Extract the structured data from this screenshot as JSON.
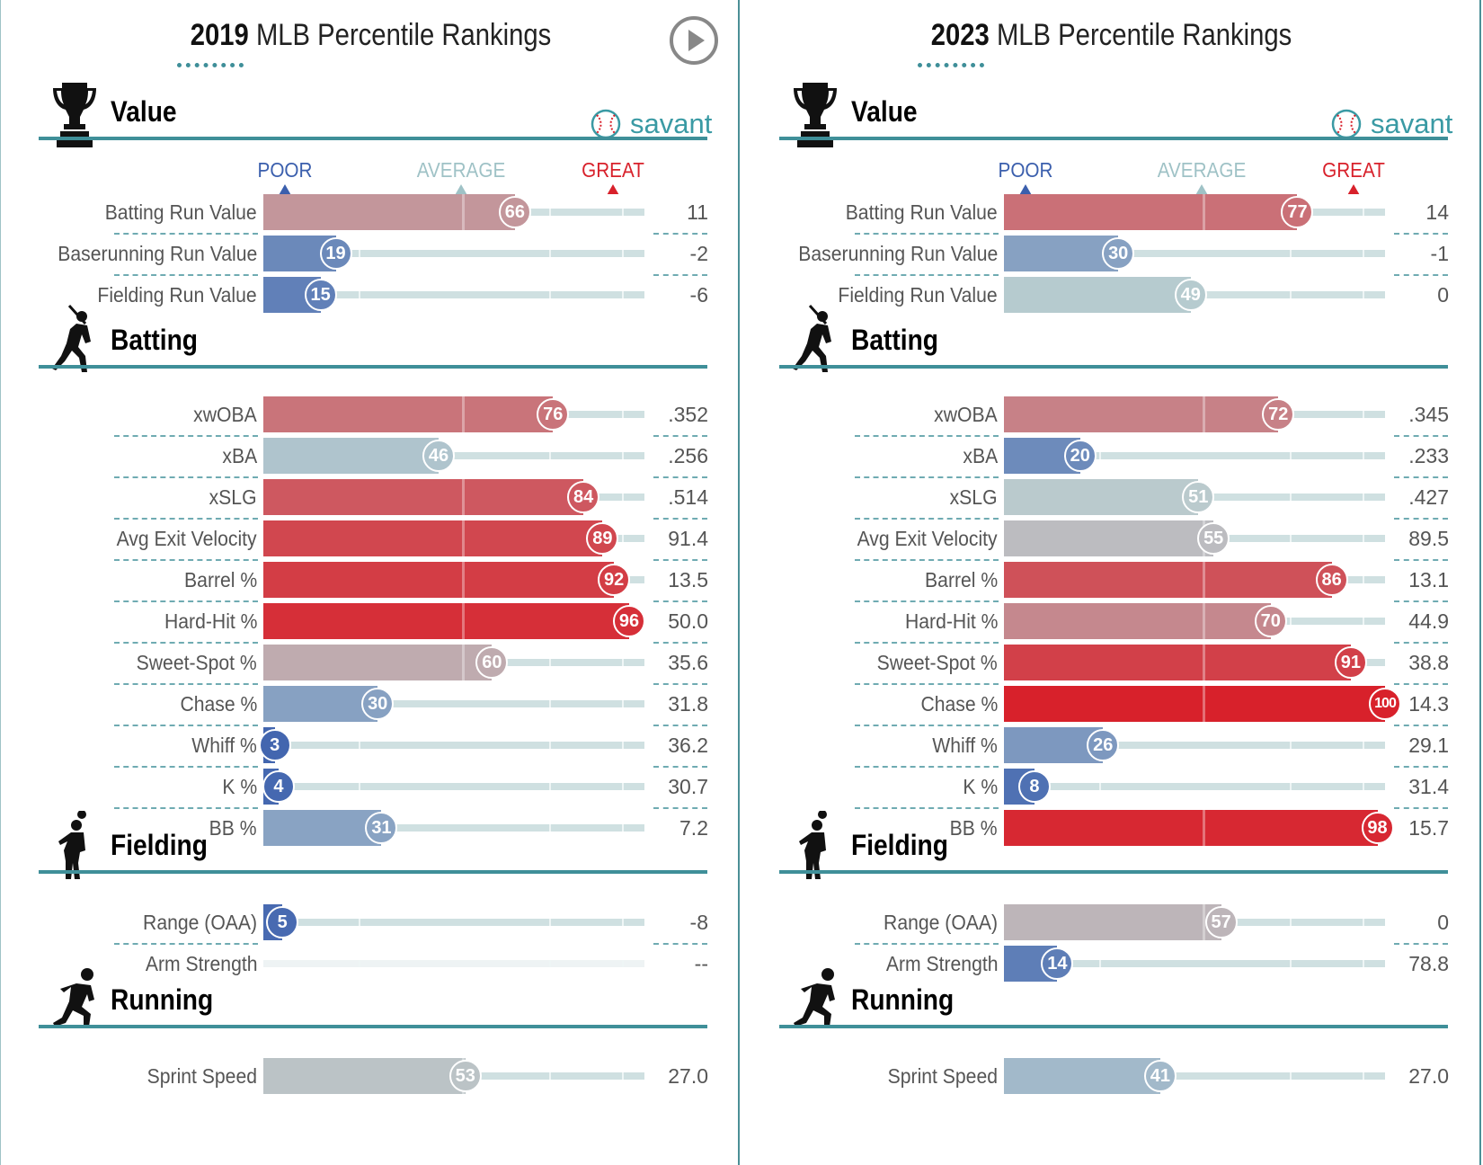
{
  "common": {
    "title_rest": "MLB Percentile Rankings",
    "scale": {
      "poor": "POOR",
      "average": "AVERAGE",
      "great": "GREAT"
    },
    "savant": "savant",
    "sections": {
      "value": "Value",
      "batting": "Batting",
      "fielding": "Fielding",
      "running": "Running"
    },
    "colors": {
      "poor": "#3b5fad",
      "average": "#b6cfd3",
      "great": "#d8212b",
      "accent": "#3f8f99"
    }
  },
  "panels": [
    {
      "year": "2019",
      "has_play": true
    },
    {
      "year": "2023",
      "has_play": false
    }
  ],
  "chart_data": [
    {
      "type": "bar",
      "title": "2019 MLB Percentile Rankings",
      "xlim": [
        0,
        100
      ],
      "sections": [
        {
          "name": "Value",
          "metrics": [
            {
              "label": "Batting Run Value",
              "percentile": 66,
              "value": "11"
            },
            {
              "label": "Baserunning Run Value",
              "percentile": 19,
              "value": "-2"
            },
            {
              "label": "Fielding Run Value",
              "percentile": 15,
              "value": "-6"
            }
          ]
        },
        {
          "name": "Batting",
          "metrics": [
            {
              "label": "xwOBA",
              "percentile": 76,
              "value": ".352"
            },
            {
              "label": "xBA",
              "percentile": 46,
              "value": ".256"
            },
            {
              "label": "xSLG",
              "percentile": 84,
              "value": ".514"
            },
            {
              "label": "Avg Exit Velocity",
              "percentile": 89,
              "value": "91.4"
            },
            {
              "label": "Barrel %",
              "percentile": 92,
              "value": "13.5"
            },
            {
              "label": "Hard-Hit %",
              "percentile": 96,
              "value": "50.0"
            },
            {
              "label": "Sweet-Spot %",
              "percentile": 60,
              "value": "35.6"
            },
            {
              "label": "Chase %",
              "percentile": 30,
              "value": "31.8"
            },
            {
              "label": "Whiff %",
              "percentile": 3,
              "value": "36.2"
            },
            {
              "label": "K %",
              "percentile": 4,
              "value": "30.7"
            },
            {
              "label": "BB %",
              "percentile": 31,
              "value": "7.2"
            }
          ]
        },
        {
          "name": "Fielding",
          "metrics": [
            {
              "label": "Range (OAA)",
              "percentile": 5,
              "value": "-8"
            },
            {
              "label": "Arm Strength",
              "percentile": null,
              "value": "--"
            }
          ]
        },
        {
          "name": "Running",
          "metrics": [
            {
              "label": "Sprint Speed",
              "percentile": 53,
              "value": "27.0"
            }
          ]
        }
      ]
    },
    {
      "type": "bar",
      "title": "2023 MLB Percentile Rankings",
      "xlim": [
        0,
        100
      ],
      "sections": [
        {
          "name": "Value",
          "metrics": [
            {
              "label": "Batting Run Value",
              "percentile": 77,
              "value": "14"
            },
            {
              "label": "Baserunning Run Value",
              "percentile": 30,
              "value": "-1"
            },
            {
              "label": "Fielding Run Value",
              "percentile": 49,
              "value": "0"
            }
          ]
        },
        {
          "name": "Batting",
          "metrics": [
            {
              "label": "xwOBA",
              "percentile": 72,
              "value": ".345"
            },
            {
              "label": "xBA",
              "percentile": 20,
              "value": ".233"
            },
            {
              "label": "xSLG",
              "percentile": 51,
              "value": ".427"
            },
            {
              "label": "Avg Exit Velocity",
              "percentile": 55,
              "value": "89.5"
            },
            {
              "label": "Barrel %",
              "percentile": 86,
              "value": "13.1"
            },
            {
              "label": "Hard-Hit %",
              "percentile": 70,
              "value": "44.9"
            },
            {
              "label": "Sweet-Spot %",
              "percentile": 91,
              "value": "38.8"
            },
            {
              "label": "Chase %",
              "percentile": 100,
              "value": "14.3"
            },
            {
              "label": "Whiff %",
              "percentile": 26,
              "value": "29.1"
            },
            {
              "label": "K %",
              "percentile": 8,
              "value": "31.4"
            },
            {
              "label": "BB %",
              "percentile": 98,
              "value": "15.7"
            }
          ]
        },
        {
          "name": "Fielding",
          "metrics": [
            {
              "label": "Range (OAA)",
              "percentile": 57,
              "value": "0"
            },
            {
              "label": "Arm Strength",
              "percentile": 14,
              "value": "78.8"
            }
          ]
        },
        {
          "name": "Running",
          "metrics": [
            {
              "label": "Sprint Speed",
              "percentile": 41,
              "value": "27.0"
            }
          ]
        }
      ]
    }
  ]
}
